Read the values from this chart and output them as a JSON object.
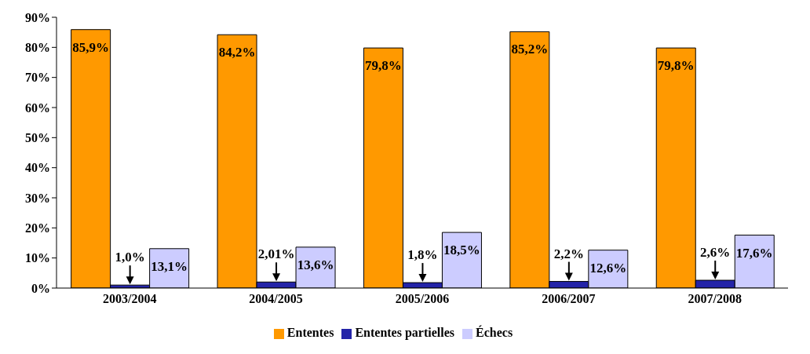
{
  "chart_data": {
    "type": "bar",
    "categories": [
      "2003/2004",
      "2004/2005",
      "2005/2006",
      "2006/2007",
      "2007/2008"
    ],
    "series": [
      {
        "name": "Ententes",
        "color": "#ff9900",
        "values": [
          85.9,
          84.2,
          79.8,
          85.2,
          79.8
        ],
        "value_labels": [
          "85,9%",
          "84,2%",
          "79,8%",
          "85,2%",
          "79,8%"
        ]
      },
      {
        "name": "Ententes partielles",
        "color": "#2424a8",
        "values": [
          1.0,
          2.01,
          1.8,
          2.2,
          2.6
        ],
        "value_labels": [
          "1,0%",
          "2,01%",
          "1,8%",
          "2,2%",
          "2,6%"
        ]
      },
      {
        "name": "Échecs",
        "color": "#ccccff",
        "values": [
          13.1,
          13.6,
          18.5,
          12.6,
          17.6
        ],
        "value_labels": [
          "13,1%",
          "13,6%",
          "18,5%",
          "12,6%",
          "17,6%"
        ]
      }
    ],
    "ylim": [
      0,
      90
    ],
    "yticks": [
      {
        "value": 0,
        "label": "0%"
      },
      {
        "value": 10,
        "label": "10%"
      },
      {
        "value": 20,
        "label": "20%"
      },
      {
        "value": 30,
        "label": "30%"
      },
      {
        "value": 40,
        "label": "40%"
      },
      {
        "value": 50,
        "label": "50%"
      },
      {
        "value": 60,
        "label": "60%"
      },
      {
        "value": 70,
        "label": "70%"
      },
      {
        "value": 80,
        "label": "80%"
      },
      {
        "value": 90,
        "label": "90%"
      }
    ],
    "grid": false,
    "legend": "bottom"
  }
}
